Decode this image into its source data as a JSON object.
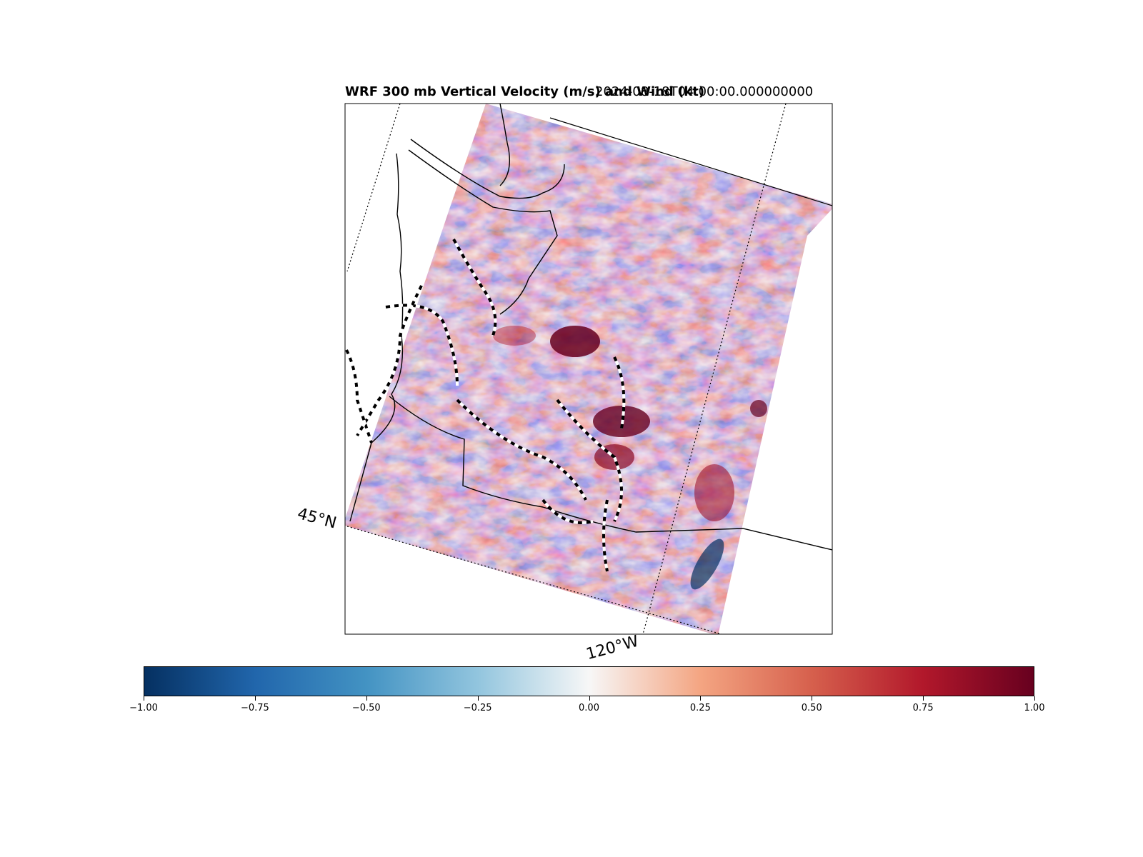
{
  "title": {
    "left": "WRF 300 mb Vertical Velocity (m/s) and Wind (kt)",
    "right": "2024-08-18T04:00:00.000000000"
  },
  "map": {
    "type": "heatmap",
    "projection_labels": {
      "lat": "45°N",
      "lon": "120°W"
    },
    "colormap": "RdBu_r",
    "domain_description_colors": {
      "land_outline": "#000000",
      "gridline": "#000000"
    }
  },
  "colorbar": {
    "vmin": -1.0,
    "vmax": 1.0,
    "ticks": [
      "−1.00",
      "−0.75",
      "−0.50",
      "−0.25",
      "0.00",
      "0.25",
      "0.50",
      "0.75",
      "1.00"
    ],
    "colors": [
      "#053061",
      "#2166ac",
      "#4393c3",
      "#92c5de",
      "#f7f7f7",
      "#f4a582",
      "#d6604d",
      "#b2182b",
      "#67001f"
    ]
  },
  "chart_data": {
    "type": "heatmap",
    "title": "WRF 300 mb Vertical Velocity (m/s) and Wind (kt)",
    "valid_time": "2024-08-18T04:00:00.000000000",
    "zlim": [
      -1.0,
      1.0
    ],
    "colorbar_ticks": [
      -1.0,
      -0.75,
      -0.5,
      -0.25,
      0.0,
      0.25,
      0.5,
      0.75,
      1.0
    ],
    "gridline_labels": [
      "45°N",
      "120°W"
    ]
  }
}
